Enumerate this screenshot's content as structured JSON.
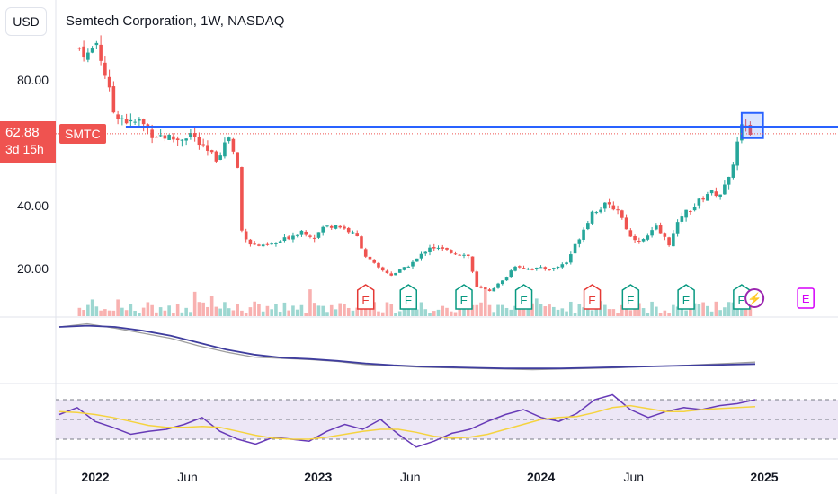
{
  "header": {
    "currency": "USD",
    "title": "Semtech Corporation, 1W, NASDAQ"
  },
  "price_tag": {
    "value": "62.88",
    "countdown": "3d 15h",
    "symbol": "SMTC"
  },
  "colors": {
    "up": "#26a69a",
    "down": "#ef5350",
    "resistance": "#2962ff",
    "rsi": "#673ab7",
    "rsi_ma": "#f5d33f",
    "rsi_band": "#ede7f6",
    "earnings_past": "#e53935",
    "earnings_green": "#089981",
    "earnings_future": "#d500f9"
  },
  "chart_data": [
    {
      "type": "candlestick",
      "timeframe": "1W",
      "y_ticks": [
        "80.00",
        "40.00",
        "20.00"
      ],
      "x_ticks": [
        "2022",
        "Jun",
        "2023",
        "Jun",
        "2024",
        "Jun",
        "2025"
      ],
      "horizontal_line": 65.0,
      "range_box": [
        61.5,
        69.5
      ],
      "last_price": 62.88,
      "close_path": [
        [
          "2021-12-06",
          90
        ],
        [
          "2021-12-20",
          88
        ],
        [
          "2022-01-03",
          92
        ],
        [
          "2022-01-17",
          82
        ],
        [
          "2022-01-31",
          70
        ],
        [
          "2022-02-14",
          68
        ],
        [
          "2022-02-28",
          66
        ],
        [
          "2022-03-14",
          67
        ],
        [
          "2022-04-04",
          63
        ],
        [
          "2022-04-25",
          62
        ],
        [
          "2022-05-16",
          61
        ],
        [
          "2022-06-06",
          63
        ],
        [
          "2022-06-27",
          58
        ],
        [
          "2022-07-18",
          55
        ],
        [
          "2022-08-08",
          62
        ],
        [
          "2022-08-22",
          52
        ],
        [
          "2022-08-29",
          32
        ],
        [
          "2022-09-12",
          28
        ],
        [
          "2022-10-03",
          27
        ],
        [
          "2022-10-24",
          28
        ],
        [
          "2022-11-14",
          30
        ],
        [
          "2022-12-05",
          32
        ],
        [
          "2022-12-26",
          30
        ],
        [
          "2023-01-09",
          33
        ],
        [
          "2023-01-30",
          34
        ],
        [
          "2023-02-20",
          32
        ],
        [
          "2023-03-06",
          30
        ],
        [
          "2023-03-20",
          24
        ],
        [
          "2023-04-10",
          20
        ],
        [
          "2023-05-01",
          18
        ],
        [
          "2023-05-22",
          20
        ],
        [
          "2023-06-12",
          23
        ],
        [
          "2023-07-03",
          27
        ],
        [
          "2023-07-24",
          26
        ],
        [
          "2023-08-14",
          25
        ],
        [
          "2023-09-04",
          24
        ],
        [
          "2023-09-18",
          14
        ],
        [
          "2023-10-09",
          13
        ],
        [
          "2023-10-30",
          16
        ],
        [
          "2023-11-20",
          21
        ],
        [
          "2023-12-11",
          20
        ],
        [
          "2024-01-01",
          20
        ],
        [
          "2024-01-22",
          20
        ],
        [
          "2024-02-12",
          22
        ],
        [
          "2024-03-04",
          30
        ],
        [
          "2024-03-25",
          38
        ],
        [
          "2024-04-15",
          40
        ],
        [
          "2024-05-06",
          39
        ],
        [
          "2024-05-27",
          30
        ],
        [
          "2024-06-17",
          29
        ],
        [
          "2024-07-08",
          33
        ],
        [
          "2024-07-29",
          28
        ],
        [
          "2024-08-19",
          37
        ],
        [
          "2024-09-09",
          40
        ],
        [
          "2024-09-30",
          44
        ],
        [
          "2024-10-21",
          44
        ],
        [
          "2024-11-04",
          48
        ],
        [
          "2024-11-18",
          60
        ],
        [
          "2024-11-25",
          65
        ],
        [
          "2024-12-09",
          63
        ]
      ],
      "earnings": [
        {
          "date": "2023-03-20",
          "label": "E",
          "color": "#e53935"
        },
        {
          "date": "2023-05-29",
          "label": "E",
          "color": "#089981"
        },
        {
          "date": "2023-08-28",
          "label": "E",
          "color": "#089981"
        },
        {
          "date": "2023-12-04",
          "label": "E",
          "color": "#089981"
        },
        {
          "date": "2024-03-25",
          "label": "E",
          "color": "#e53935"
        },
        {
          "date": "2024-05-27",
          "label": "E",
          "color": "#089981"
        },
        {
          "date": "2024-08-26",
          "label": "E",
          "color": "#089981"
        },
        {
          "date": "2024-11-25",
          "label": "E",
          "color": "#089981"
        },
        {
          "date": "2024-12-16",
          "label": "⚡",
          "color": "#9c27b0"
        },
        {
          "date": "2025-03-10",
          "label": "E",
          "color": "#d500f9"
        }
      ]
    },
    {
      "type": "line",
      "name": "",
      "series": [
        {
          "values": [
            0.8,
            0.85,
            0.78,
            0.7,
            0.62,
            0.5,
            0.4,
            0.32,
            0.3,
            0.28,
            0.25,
            0.2,
            0.18,
            0.16,
            0.15,
            0.14,
            0.13,
            0.12,
            0.13,
            0.14,
            0.15,
            0.17,
            0.18,
            0.2,
            0.22,
            0.24
          ]
        },
        {
          "values": [
            0.8,
            0.82,
            0.8,
            0.74,
            0.66,
            0.55,
            0.44,
            0.36,
            0.31,
            0.29,
            0.26,
            0.22,
            0.19,
            0.17,
            0.16,
            0.15,
            0.14,
            0.14,
            0.14,
            0.15,
            0.16,
            0.17,
            0.18,
            0.19,
            0.2,
            0.21
          ]
        }
      ]
    },
    {
      "type": "line",
      "name": "",
      "bands": [
        70,
        50,
        30
      ],
      "series": [
        {
          "values": [
            55,
            62,
            48,
            42,
            35,
            38,
            40,
            45,
            52,
            38,
            30,
            25,
            32,
            30,
            28,
            38,
            45,
            40,
            50,
            35,
            22,
            28,
            36,
            40,
            48,
            55,
            60,
            52,
            48,
            56,
            70,
            75,
            60,
            52,
            58,
            62,
            60,
            64,
            66,
            70
          ]
        },
        {
          "values": [
            58,
            57,
            55,
            52,
            48,
            44,
            42,
            42,
            43,
            42,
            38,
            34,
            31,
            30,
            30,
            32,
            35,
            38,
            40,
            40,
            37,
            33,
            31,
            32,
            35,
            40,
            45,
            50,
            52,
            53,
            57,
            62,
            64,
            61,
            58,
            58,
            60,
            61,
            62,
            63
          ]
        }
      ]
    }
  ]
}
